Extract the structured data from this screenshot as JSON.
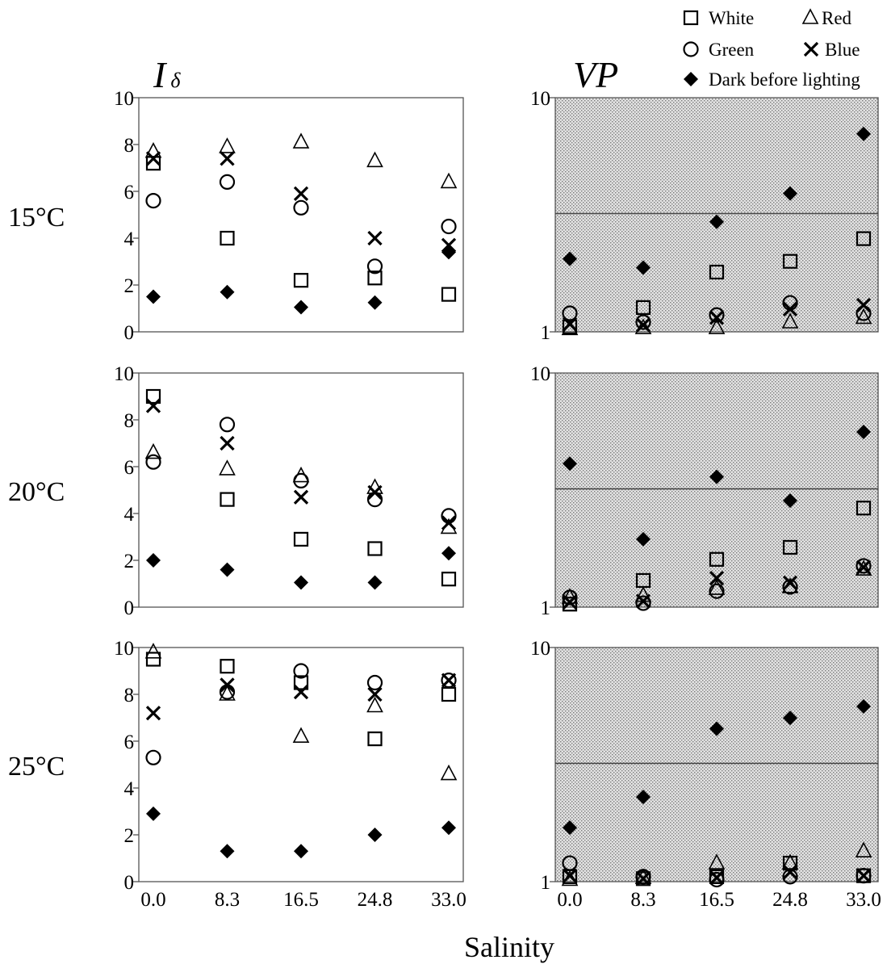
{
  "figure": {
    "left_title_main": "I",
    "left_title_sub": "δ",
    "right_title": "VP",
    "xlabel": "Salinity",
    "row_labels": [
      "15°C",
      "20°C",
      "25°C"
    ]
  },
  "legend": [
    {
      "label": "White",
      "marker": "square"
    },
    {
      "label": "Red",
      "marker": "triangle"
    },
    {
      "label": "Green",
      "marker": "circle"
    },
    {
      "label": "Blue",
      "marker": "cross"
    },
    {
      "label": "Dark before lighting",
      "marker": "filled-diamond"
    }
  ],
  "colors": {
    "shade": "#d4d4d4",
    "ink": "#000000"
  },
  "chart_data": [
    {
      "type": "scatter",
      "id": "Id-15C",
      "categories": [
        "0.0",
        "8.3",
        "16.5",
        "24.8",
        "33.0"
      ],
      "ylim": [
        0,
        10
      ],
      "yticks": [
        "0",
        "2",
        "4",
        "6",
        "8",
        "10"
      ],
      "yscale": "linear",
      "series": [
        {
          "name": "White",
          "values": [
            7.2,
            4.0,
            2.2,
            2.3,
            1.6
          ]
        },
        {
          "name": "Red",
          "values": [
            7.7,
            7.9,
            8.1,
            7.3,
            6.4
          ]
        },
        {
          "name": "Green",
          "values": [
            5.6,
            6.4,
            5.3,
            2.8,
            4.5
          ]
        },
        {
          "name": "Blue",
          "values": [
            7.4,
            7.4,
            5.9,
            4.0,
            3.7
          ]
        },
        {
          "name": "Dark before lighting",
          "values": [
            1.5,
            1.7,
            1.05,
            1.25,
            3.4
          ]
        }
      ]
    },
    {
      "type": "scatter",
      "id": "VP-15C",
      "categories": [
        "0.0",
        "8.3",
        "16.5",
        "24.8",
        "33.0"
      ],
      "ylim": [
        1,
        10
      ],
      "yticks": [
        "1",
        "10"
      ],
      "yscale": "log",
      "reference_line": 3.2,
      "shaded": true,
      "series": [
        {
          "name": "White",
          "values": [
            1.05,
            1.27,
            1.8,
            2.0,
            2.5
          ]
        },
        {
          "name": "Red",
          "values": [
            1.03,
            1.04,
            1.04,
            1.1,
            1.15
          ]
        },
        {
          "name": "Green",
          "values": [
            1.2,
            1.1,
            1.18,
            1.33,
            1.2
          ]
        },
        {
          "name": "Blue",
          "values": [
            1.08,
            1.07,
            1.15,
            1.25,
            1.3
          ]
        },
        {
          "name": "Dark before lighting",
          "values": [
            2.05,
            1.88,
            2.95,
            3.9,
            7.0
          ]
        }
      ]
    },
    {
      "type": "scatter",
      "id": "Id-20C",
      "categories": [
        "0.0",
        "8.3",
        "16.5",
        "24.8",
        "33.0"
      ],
      "ylim": [
        0,
        10
      ],
      "yticks": [
        "0",
        "2",
        "4",
        "6",
        "8",
        "10"
      ],
      "yscale": "linear",
      "series": [
        {
          "name": "White",
          "values": [
            9.0,
            4.6,
            2.9,
            2.5,
            1.2
          ]
        },
        {
          "name": "Red",
          "values": [
            6.6,
            5.9,
            5.6,
            5.1,
            3.4
          ]
        },
        {
          "name": "Green",
          "values": [
            6.2,
            7.8,
            5.4,
            4.6,
            3.9
          ]
        },
        {
          "name": "Blue",
          "values": [
            8.6,
            7.0,
            4.7,
            4.9,
            3.6
          ]
        },
        {
          "name": "Dark before lighting",
          "values": [
            2.0,
            1.6,
            1.05,
            1.05,
            2.3
          ]
        }
      ]
    },
    {
      "type": "scatter",
      "id": "VP-20C",
      "categories": [
        "0.0",
        "8.3",
        "16.5",
        "24.8",
        "33.0"
      ],
      "ylim": [
        1,
        10
      ],
      "yticks": [
        "1",
        "10"
      ],
      "yscale": "log",
      "reference_line": 3.2,
      "shaded": true,
      "series": [
        {
          "name": "White",
          "values": [
            1.03,
            1.3,
            1.6,
            1.8,
            2.65
          ]
        },
        {
          "name": "Red",
          "values": [
            1.1,
            1.12,
            1.2,
            1.22,
            1.45
          ]
        },
        {
          "name": "Green",
          "values": [
            1.1,
            1.04,
            1.17,
            1.22,
            1.5
          ]
        },
        {
          "name": "Blue",
          "values": [
            1.05,
            1.06,
            1.33,
            1.27,
            1.48
          ]
        },
        {
          "name": "Dark before lighting",
          "values": [
            4.1,
            1.95,
            3.6,
            2.85,
            5.6
          ]
        }
      ]
    },
    {
      "type": "scatter",
      "id": "Id-25C",
      "categories": [
        "0.0",
        "8.3",
        "16.5",
        "24.8",
        "33.0"
      ],
      "ylim": [
        0,
        10
      ],
      "yticks": [
        "0",
        "2",
        "4",
        "6",
        "8",
        "10"
      ],
      "yscale": "linear",
      "series": [
        {
          "name": "White",
          "values": [
            9.5,
            9.2,
            8.5,
            6.1,
            8.0
          ]
        },
        {
          "name": "Red",
          "values": [
            9.8,
            8.0,
            6.2,
            7.5,
            4.6
          ]
        },
        {
          "name": "Green",
          "values": [
            5.3,
            8.1,
            9.0,
            8.5,
            8.6
          ]
        },
        {
          "name": "Blue",
          "values": [
            7.2,
            8.4,
            8.1,
            8.0,
            8.6
          ]
        },
        {
          "name": "Dark before lighting",
          "values": [
            2.9,
            1.3,
            1.3,
            2.0,
            2.3
          ]
        }
      ]
    },
    {
      "type": "scatter",
      "id": "VP-25C",
      "categories": [
        "0.0",
        "8.3",
        "16.5",
        "24.8",
        "33.0"
      ],
      "ylim": [
        1,
        10
      ],
      "yticks": [
        "1",
        "10"
      ],
      "yscale": "log",
      "reference_line": 3.2,
      "shaded": true,
      "series": [
        {
          "name": "White",
          "values": [
            1.05,
            1.03,
            1.05,
            1.2,
            1.06
          ]
        },
        {
          "name": "Red",
          "values": [
            1.02,
            1.04,
            1.2,
            1.2,
            1.35
          ]
        },
        {
          "name": "Green",
          "values": [
            1.2,
            1.05,
            1.02,
            1.05,
            1.06
          ]
        },
        {
          "name": "Blue",
          "values": [
            1.06,
            1.03,
            1.04,
            1.1,
            1.06
          ]
        },
        {
          "name": "Dark before lighting",
          "values": [
            1.7,
            2.3,
            4.5,
            5.0,
            5.6
          ]
        }
      ]
    }
  ]
}
